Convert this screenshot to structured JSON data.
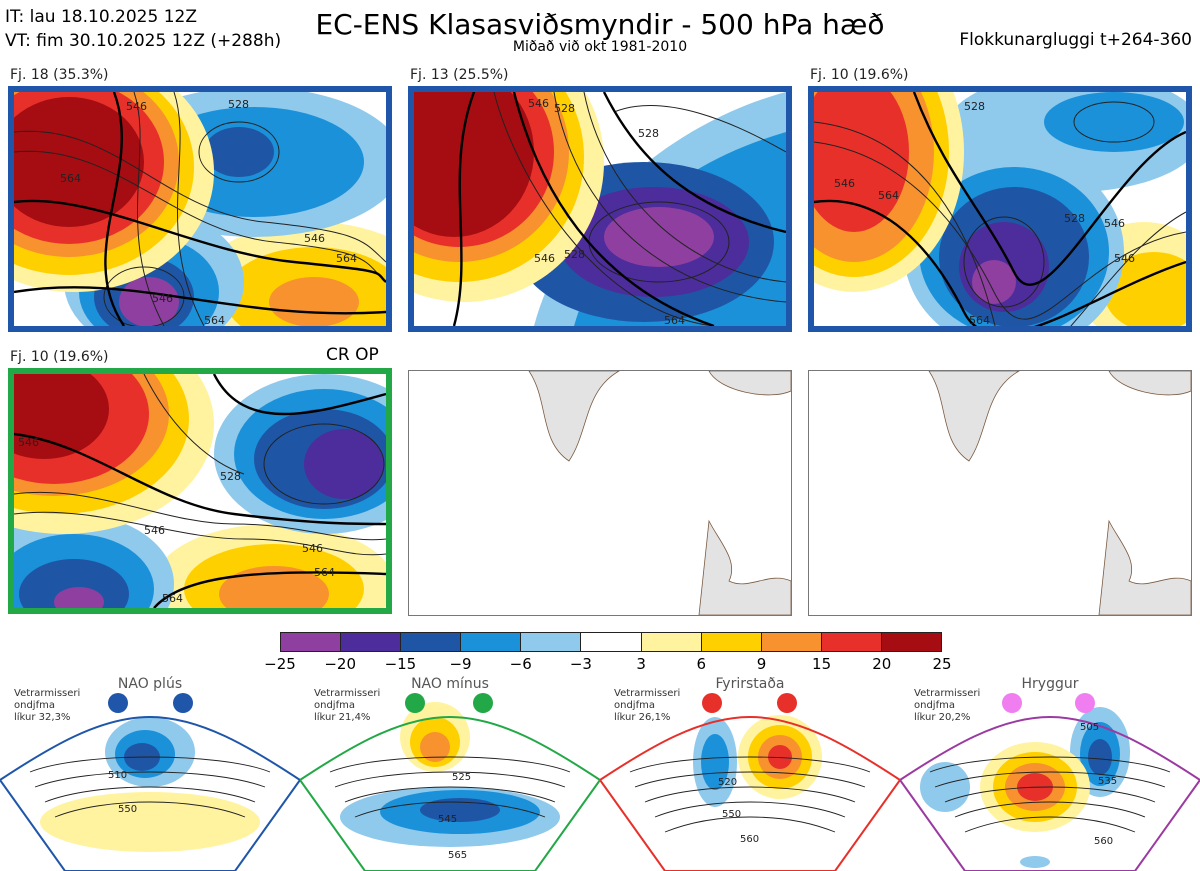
{
  "header": {
    "it_line": "IT: lau 18.10.2025 12Z",
    "vt_line": "VT: fim 30.10.2025 12Z  (+288h)",
    "title": "EC-ENS Klasasviðsmyndir - 500 hPa hæð",
    "subtitle": "Miðað við okt 1981-2010",
    "window": "Flokkunargluggi t+264-360"
  },
  "clusters": [
    {
      "label": "Fj. 18 (35.3%)",
      "frame": "#1f56a9",
      "contours": [
        "546",
        "528",
        "564",
        "546",
        "546",
        "564",
        "564"
      ]
    },
    {
      "label": "Fj. 13 (25.5%)",
      "frame": "#1f56a9",
      "contours": [
        "546",
        "528",
        "528",
        "546",
        "528",
        "564"
      ]
    },
    {
      "label": "Fj. 10 (19.6%)",
      "frame": "#1f56a9",
      "contours": [
        "528",
        "546",
        "564",
        "528",
        "546",
        "564",
        "546"
      ]
    },
    {
      "label": "Fj. 10 (19.6%)",
      "frame": "#22a846",
      "contours": [
        "546",
        "528",
        "546",
        "546",
        "564",
        "564"
      ]
    }
  ],
  "control_label": "CR OP",
  "colorbar": {
    "colors": [
      "#8e3fa0",
      "#4c2d9b",
      "#1e56a5",
      "#1b91d9",
      "#8fc9ec",
      "#ffffff",
      "#fff3a0",
      "#ffd000",
      "#f8922e",
      "#e8302a",
      "#a50d12"
    ],
    "ticks": [
      "−25",
      "−20",
      "−15",
      "−9",
      "−6",
      "−3",
      "3",
      "6",
      "9",
      "15",
      "20",
      "25"
    ]
  },
  "regimes": [
    {
      "name": "NAO plús",
      "stats": [
        "Vetrarmisseri",
        "ondjfma",
        "líkur 32,3%"
      ],
      "color": "#1f56a9",
      "contours": [
        "510",
        "550"
      ]
    },
    {
      "name": "NAO mínus",
      "stats": [
        "Vetrarmisseri",
        "ondjfma",
        "líkur 21,4%"
      ],
      "color": "#22a846",
      "contours": [
        "525",
        "545",
        "565"
      ]
    },
    {
      "name": "Fyrirstaða",
      "stats": [
        "Vetrarmisseri",
        "ondjfma",
        "líkur 26,1%"
      ],
      "color": "#e8302a",
      "contours": [
        "520",
        "550",
        "560"
      ]
    },
    {
      "name": "Hryggur",
      "stats": [
        "Vetrarmisseri",
        "ondjfma",
        "líkur 20,2%"
      ],
      "color": "#9b3aa0",
      "dot": "#f07ef0",
      "contours": [
        "505",
        "535",
        "560"
      ]
    }
  ]
}
